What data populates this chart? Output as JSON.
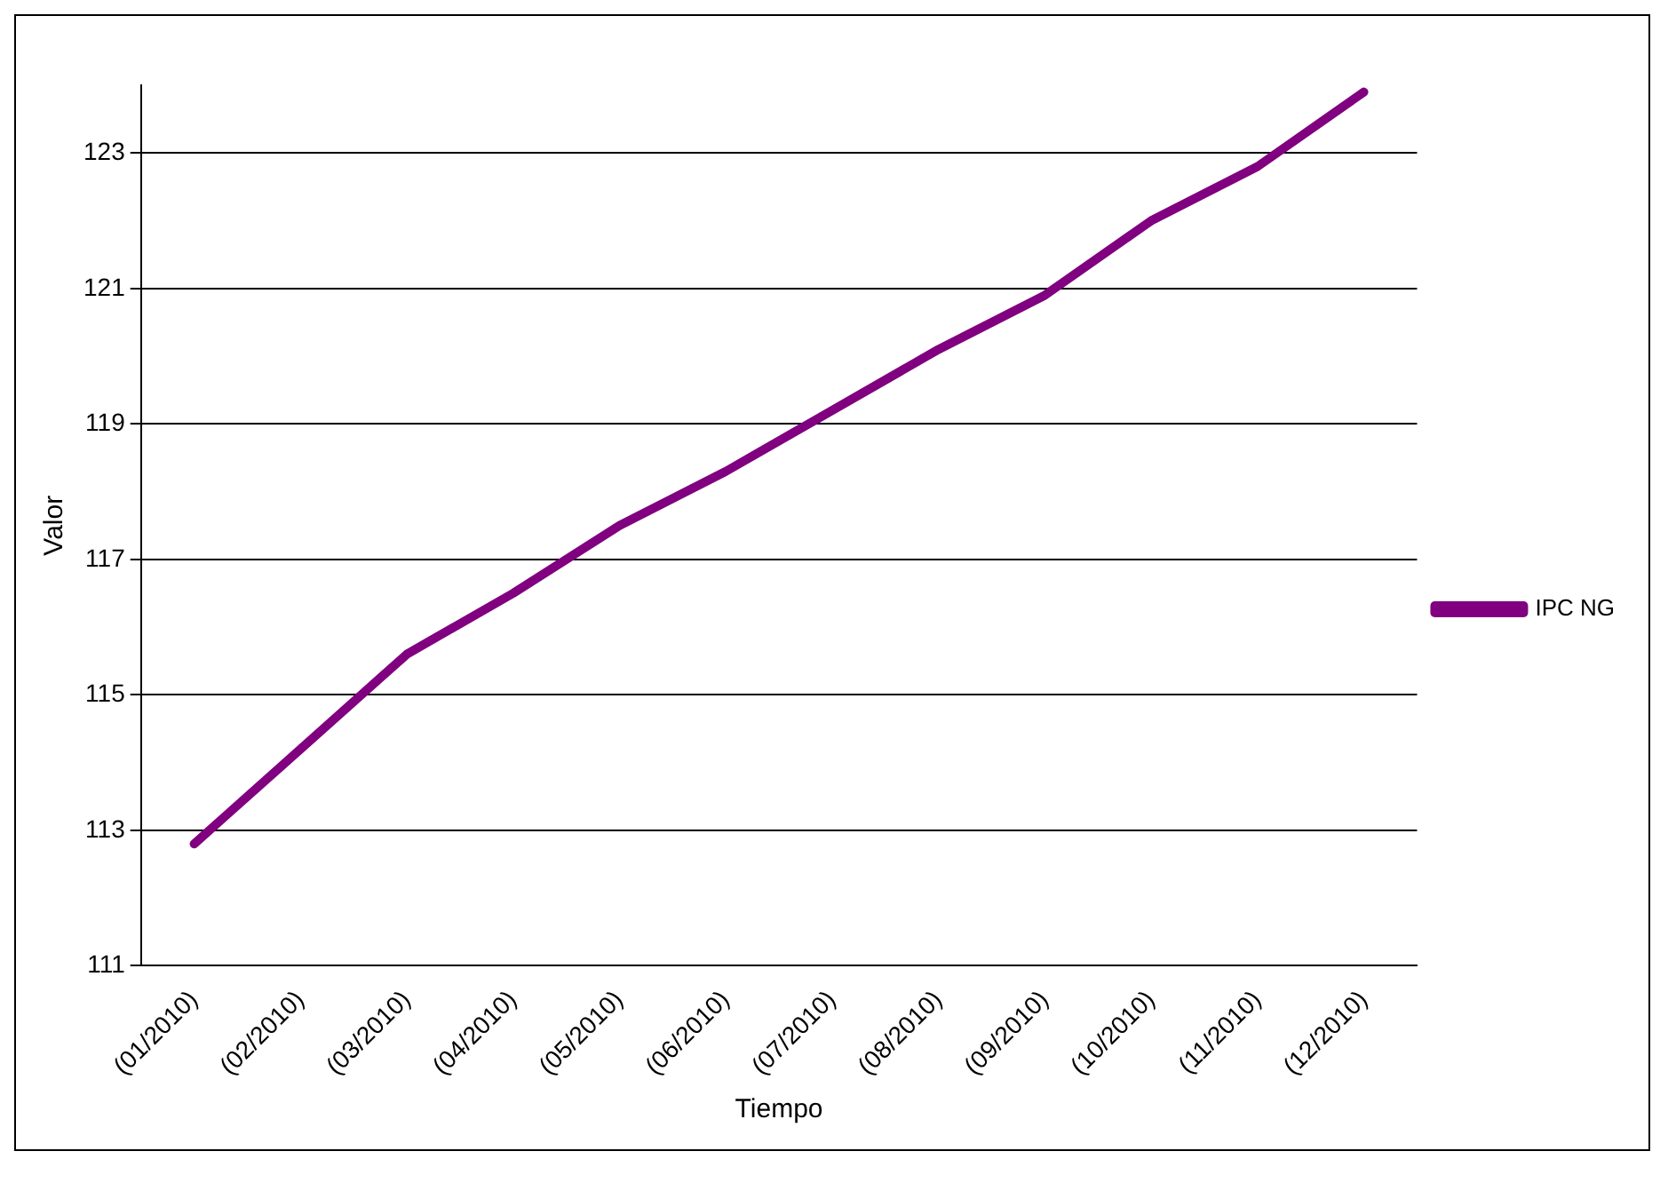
{
  "chart_data": {
    "type": "line",
    "xlabel": "Tiempo",
    "ylabel": "Valor",
    "categories": [
      "(01/2010)",
      "(02/2010)",
      "(03/2010)",
      "(04/2010)",
      "(05/2010)",
      "(06/2010)",
      "(07/2010)",
      "(08/2010)",
      "(09/2010)",
      "(10/2010)",
      "(11/2010)",
      "(12/2010)"
    ],
    "series": [
      {
        "name": "IPC NG",
        "color": "#800080",
        "values": [
          112.8,
          114.2,
          115.6,
          116.5,
          117.5,
          118.3,
          119.2,
          120.1,
          120.9,
          122.0,
          122.8,
          123.9
        ]
      }
    ],
    "ylim": [
      111,
      124
    ],
    "yticks": [
      111,
      113,
      115,
      117,
      119,
      121,
      123
    ],
    "grid": "y",
    "legend": "right",
    "marker": "none",
    "line_style": "solid"
  }
}
